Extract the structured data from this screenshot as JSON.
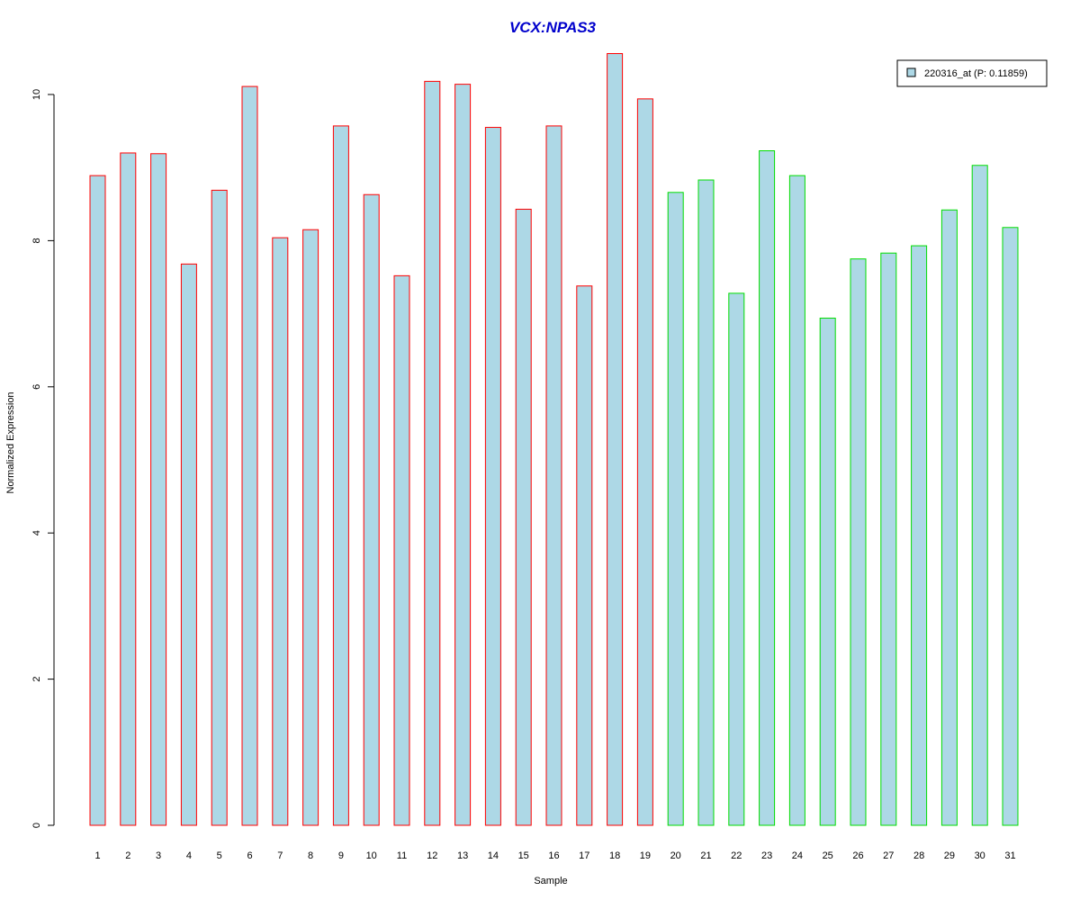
{
  "chart_data": {
    "type": "bar",
    "title": "VCX:NPAS3",
    "xlabel": "Sample",
    "ylabel": "Normalized Expression",
    "ylim": [
      0,
      10.6
    ],
    "yticks": [
      0,
      2,
      4,
      6,
      8,
      10
    ],
    "grid": false,
    "legend_position": "top-right",
    "categories": [
      "1",
      "2",
      "3",
      "4",
      "5",
      "6",
      "7",
      "8",
      "9",
      "10",
      "11",
      "12",
      "13",
      "14",
      "15",
      "16",
      "17",
      "18",
      "19",
      "20",
      "21",
      "22",
      "23",
      "24",
      "25",
      "26",
      "27",
      "28",
      "29",
      "30",
      "31"
    ],
    "series": [
      {
        "name": "220316_at (P: 0.11859)",
        "values": [
          8.89,
          9.2,
          9.19,
          7.68,
          8.69,
          10.11,
          8.04,
          8.15,
          9.57,
          8.63,
          7.52,
          10.18,
          10.14,
          9.55,
          8.43,
          9.57,
          7.38,
          10.56,
          9.94,
          8.66,
          8.83,
          7.28,
          9.23,
          8.89,
          6.94,
          7.75,
          7.83,
          7.93,
          8.42,
          9.03,
          8.18
        ]
      }
    ],
    "groups": [
      {
        "samples": "1-19",
        "border_color": "#ff0000"
      },
      {
        "samples": "20-31",
        "border_color": "#00dd00"
      }
    ]
  },
  "colors": {
    "title": "#0000cc",
    "bar_fill": "#add8e6",
    "group1_border": "#ff0000",
    "group2_border": "#00dd00"
  }
}
